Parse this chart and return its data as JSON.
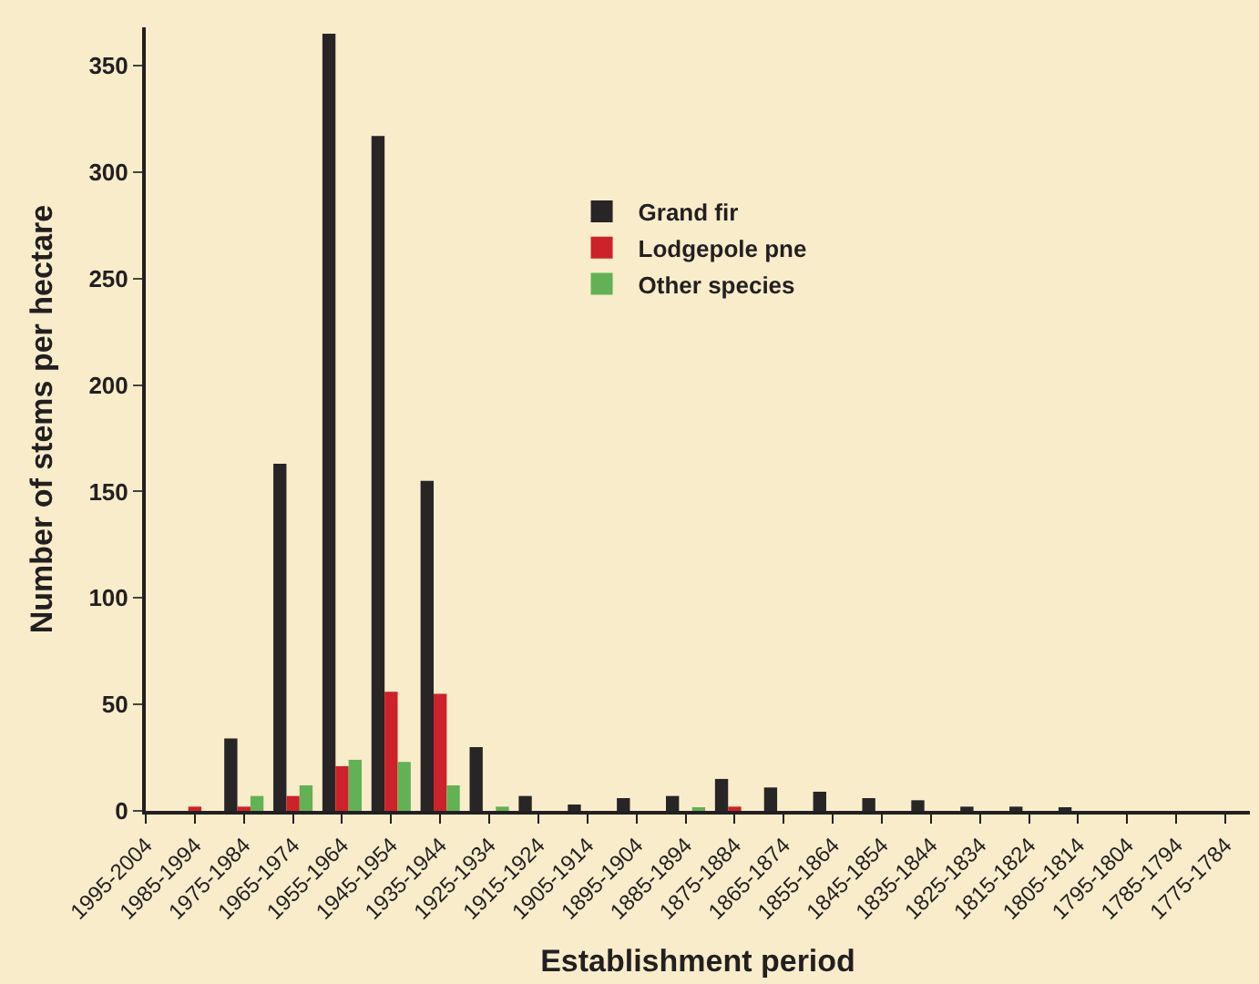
{
  "chart_data": {
    "type": "bar",
    "xlabel": "Establishment period",
    "ylabel": "Number of stems per hectare",
    "categories": [
      "1995-2004",
      "1985-1994",
      "1975-1984",
      "1965-1974",
      "1955-1964",
      "1945-1954",
      "1935-1944",
      "1925-1934",
      "1915-1924",
      "1905-1914",
      "1895-1904",
      "1885-1894",
      "1875-1884",
      "1865-1874",
      "1855-1864",
      "1845-1854",
      "1835-1844",
      "1825-1834",
      "1815-1824",
      "1805-1814",
      "1795-1804",
      "1785-1794",
      "1775-1784"
    ],
    "series": [
      {
        "name": "Grand fir",
        "color": "#272526",
        "values": [
          0,
          0,
          34,
          163,
          365,
          317,
          155,
          30,
          7,
          3,
          6,
          7,
          15,
          11,
          9,
          6,
          5,
          2,
          2,
          1,
          0,
          0,
          0
        ]
      },
      {
        "name": "Lodgepole pne",
        "color": "#cc2229",
        "values": [
          0,
          2,
          2,
          7,
          21,
          56,
          55,
          0,
          0,
          0,
          0,
          0,
          2,
          0,
          0,
          0,
          0,
          0,
          0,
          0,
          0,
          0,
          0
        ]
      },
      {
        "name": "Other species",
        "color": "#63b155",
        "values": [
          0,
          0,
          7,
          12,
          24,
          23,
          12,
          2,
          0,
          0,
          0,
          1,
          0,
          0,
          0,
          0,
          0,
          0,
          0,
          0,
          0,
          0,
          0
        ]
      }
    ],
    "ylim": [
      0,
      368
    ],
    "yticks": [
      0,
      50,
      100,
      150,
      200,
      250,
      300,
      350
    ],
    "grid": false,
    "legend": "top"
  }
}
